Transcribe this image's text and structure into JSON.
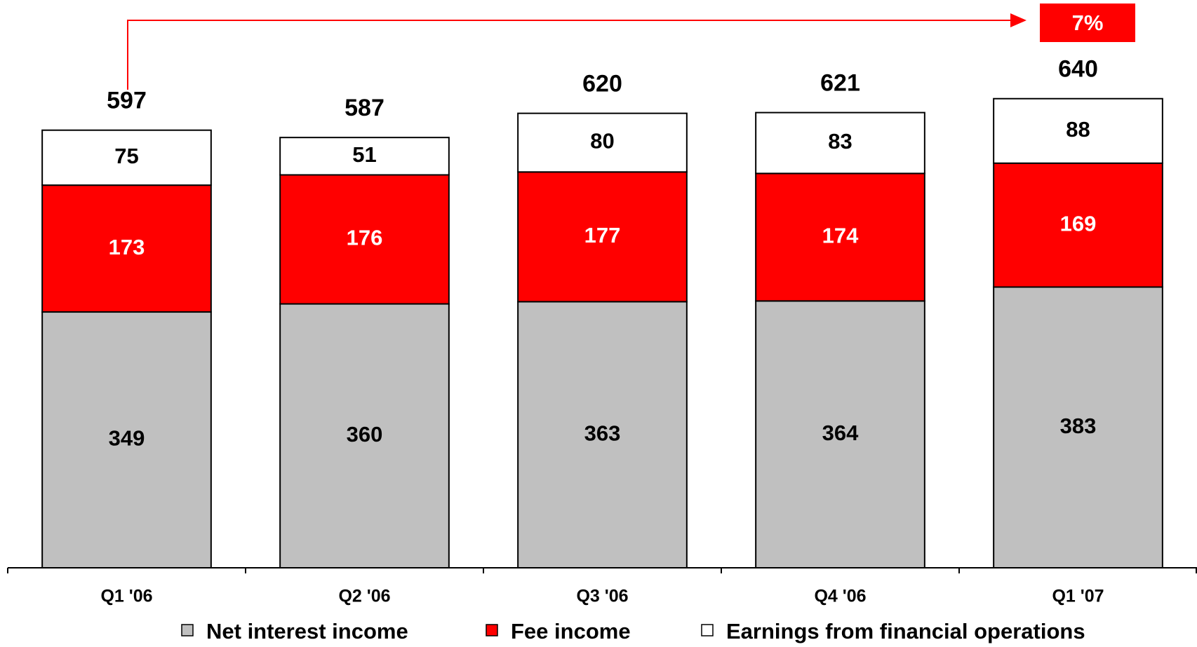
{
  "chart_data": {
    "type": "stacked_bar",
    "categories": [
      "Q1 '06",
      "Q2 '06",
      "Q3 '06",
      "Q4 '06",
      "Q1 '07"
    ],
    "series": [
      {
        "name": "Net interest income",
        "color": "#c0c0c0",
        "label_color": "#000000",
        "values": [
          349,
          360,
          363,
          364,
          383
        ]
      },
      {
        "name": "Fee income",
        "color": "#ff0000",
        "label_color": "#ffffff",
        "values": [
          173,
          176,
          177,
          174,
          169
        ]
      },
      {
        "name": "Earnings from financial operations",
        "color": "#ffffff",
        "label_color": "#000000",
        "values": [
          75,
          51,
          80,
          83,
          88
        ]
      }
    ],
    "totals": [
      597,
      587,
      620,
      621,
      640
    ],
    "annotation": "7%",
    "ylim": [
      0,
      700
    ]
  }
}
